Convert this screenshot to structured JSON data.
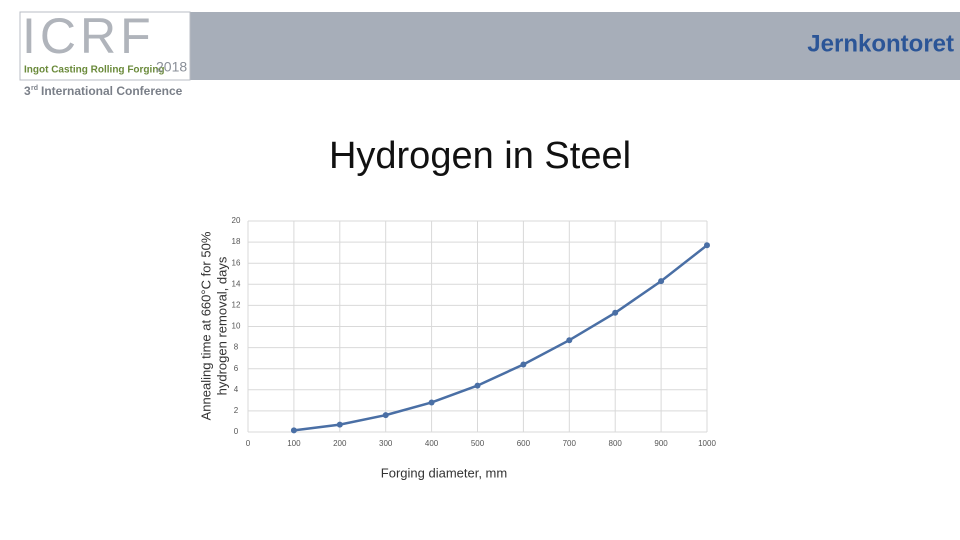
{
  "header": {
    "logo": "ICRF",
    "logo_subtitle": "Ingot Casting Rolling Forging",
    "year": "2018",
    "conference_number": "3",
    "conference_suffix": "rd",
    "conference_name": "International Conference",
    "organization": "Jernkontoret"
  },
  "chart_data": {
    "type": "line",
    "title": "Hydrogen in Steel",
    "y_label": [
      "Annealing time at 660°C for 50%",
      "hydrogen removal, days"
    ],
    "x_label": "Forging diameter, mm",
    "x": [
      100,
      200,
      300,
      400,
      500,
      600,
      700,
      800,
      900,
      1000
    ],
    "values": [
      0.15,
      0.7,
      1.6,
      2.8,
      4.4,
      6.4,
      8.7,
      11.3,
      14.3,
      17.7
    ],
    "color": "#4a6fa5",
    "xlim": [
      0,
      1000
    ],
    "xticks": [
      0,
      100,
      200,
      300,
      400,
      500,
      600,
      700,
      800,
      900,
      1000
    ],
    "ylim": [
      0,
      20
    ],
    "yticks": [
      0,
      2,
      4,
      6,
      8,
      10,
      12,
      14,
      16,
      18,
      20
    ],
    "grid": true
  }
}
